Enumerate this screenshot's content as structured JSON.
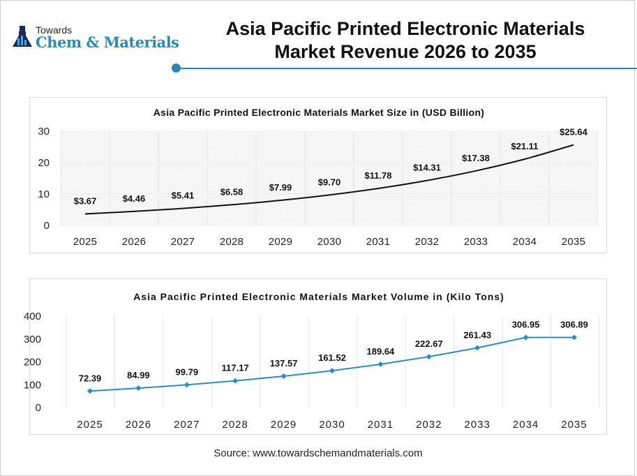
{
  "logo": {
    "line1": "Towards",
    "line2": "Chem & Materials"
  },
  "title": "Asia Pacific Printed Electronic Materials Market Revenue 2026 to 2035",
  "colors": {
    "accent": "#2e86b3",
    "size_line": "#111111",
    "volume_line": "#2e8bc0"
  },
  "chart_data": [
    {
      "type": "line",
      "title": "Asia Pacific Printed Electronic Materials Market Size in (USD Billion)",
      "categories": [
        "2025",
        "2026",
        "2027",
        "2028",
        "2029",
        "2030",
        "2031",
        "2032",
        "2033",
        "2034",
        "2035"
      ],
      "values": [
        3.67,
        4.46,
        5.41,
        6.58,
        7.99,
        9.7,
        11.78,
        14.31,
        17.38,
        21.11,
        25.64
      ],
      "data_labels": [
        "$3.67",
        "$4.46",
        "$5.41",
        "$6.58",
        "$7.99",
        "$9.70",
        "$11.78",
        "$14.31",
        "$17.38",
        "$21.11",
        "$25.64"
      ],
      "ylim": [
        0,
        30
      ],
      "yticks": [
        "0",
        "10",
        "20",
        "30"
      ],
      "grid": true,
      "smooth": true
    },
    {
      "type": "line",
      "title": "Asia Pacific Printed Electronic Materials Market Volume in (Kilo Tons)",
      "categories": [
        "2025",
        "2026",
        "2027",
        "2028",
        "2029",
        "2030",
        "2031",
        "2032",
        "2033",
        "2034",
        "2035"
      ],
      "values": [
        72.39,
        84.99,
        99.79,
        117.17,
        137.57,
        161.52,
        189.64,
        222.67,
        261.43,
        306.95,
        306.89
      ],
      "data_labels": [
        "72.39",
        "84.99",
        "99.79",
        "117.17",
        "137.57",
        "161.52",
        "189.64",
        "222.67",
        "261.43",
        "306.95",
        "306.89"
      ],
      "ylim": [
        0,
        400
      ],
      "yticks": [
        "0",
        "100",
        "200",
        "300",
        "400"
      ],
      "grid": true,
      "markers": "diamond"
    }
  ],
  "source": "Source: www.towardschemandmaterials.com"
}
